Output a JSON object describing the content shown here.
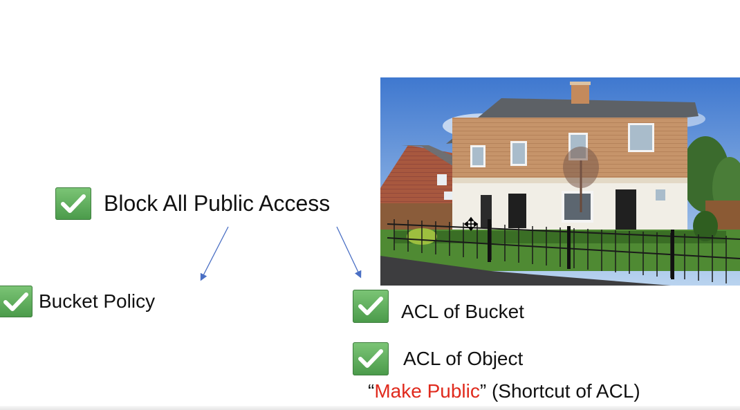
{
  "main_item": {
    "label": "Block All Public Access"
  },
  "left_item": {
    "label": "Bucket Policy"
  },
  "right_items": [
    {
      "label": "ACL of Bucket"
    },
    {
      "label": "ACL of Object"
    }
  ],
  "note": {
    "open_quote": "“",
    "highlight": "Make Public",
    "close_quote": "”",
    "rest": " (Shortcut of ACL)"
  },
  "colors": {
    "check_green": "#5aab5a",
    "arrow_blue": "#4a6fc4",
    "highlight_red": "#e02a1d"
  },
  "icons": [
    "checkmark-icon",
    "arrow-down-left-icon",
    "arrow-down-right-icon",
    "move-cursor-icon"
  ]
}
